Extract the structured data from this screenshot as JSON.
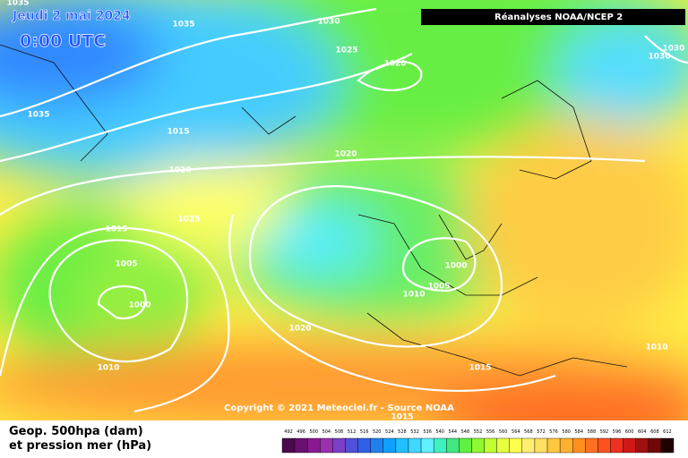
{
  "header": {
    "date": "Jeudi 2 mai 2024",
    "time": "0:00 UTC",
    "source": "Réanalyses NOAA/NCEP 2"
  },
  "copyright": "Copyright © 2021 Meteociel.fr - Source NOAA",
  "caption": [
    "Geop. 500hpa (dam)",
    "et pression mer (hPa)"
  ],
  "isobar_labels": [
    "1035",
    "1035",
    "1030",
    "1025",
    "1020",
    "1030",
    "1030",
    "1035",
    "1015",
    "1020",
    "1020",
    "1025",
    "1015",
    "1005",
    "1000",
    "1000",
    "1005",
    "1010",
    "1020",
    "1010",
    "1015",
    "1010",
    "1015"
  ],
  "legend": {
    "labels": [
      492,
      496,
      500,
      504,
      508,
      512,
      516,
      520,
      524,
      528,
      532,
      536,
      540,
      544,
      548,
      552,
      556,
      560,
      564,
      568,
      572,
      576,
      580,
      584,
      588,
      592,
      596,
      600,
      604,
      608,
      612
    ],
    "colors": [
      "#4b0a4b",
      "#6a1070",
      "#8a1a90",
      "#9a30b0",
      "#7a40c8",
      "#5050d8",
      "#3060e8",
      "#2080f0",
      "#10a0ff",
      "#20c0ff",
      "#40d8ff",
      "#60f0ff",
      "#40f0c0",
      "#40e880",
      "#60f040",
      "#90f830",
      "#c0ff30",
      "#e8ff40",
      "#ffff50",
      "#fff070",
      "#ffe060",
      "#ffc840",
      "#ffb030",
      "#ff9020",
      "#ff7020",
      "#ff5020",
      "#f03020",
      "#d01818",
      "#a01010",
      "#700808",
      "#200000"
    ]
  }
}
